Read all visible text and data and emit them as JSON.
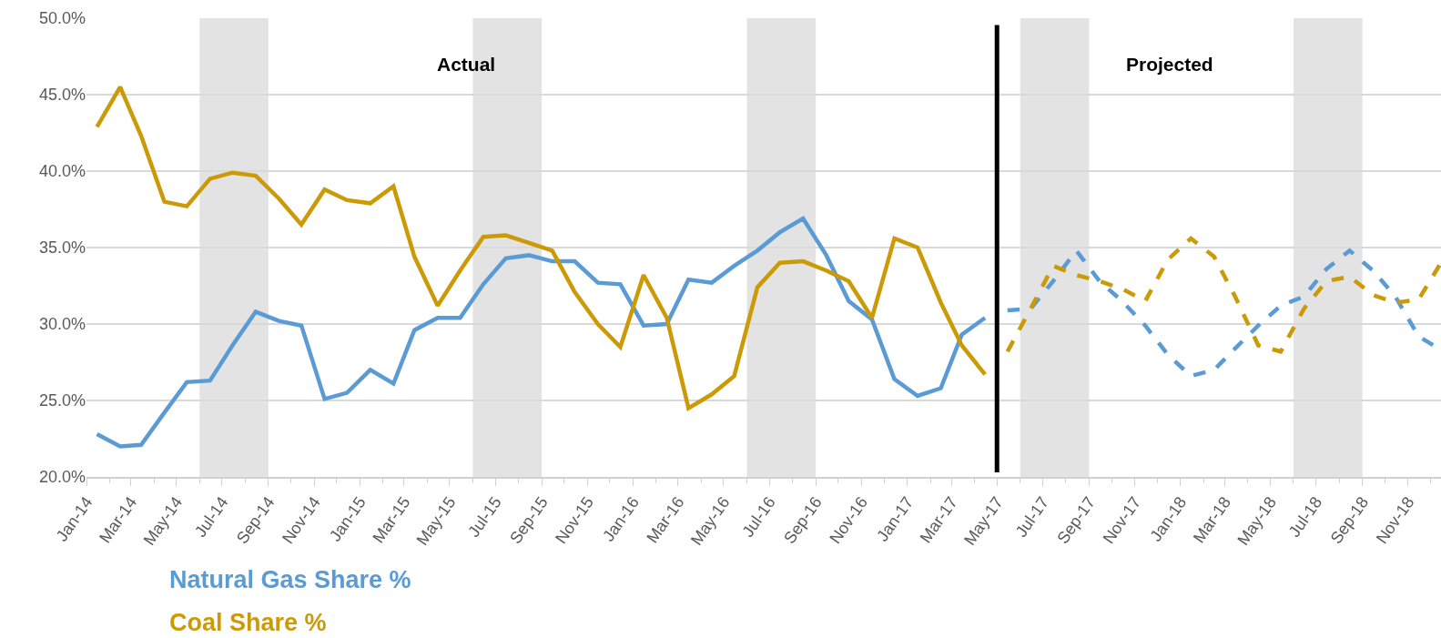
{
  "chart_data": {
    "type": "line",
    "annotations": [
      "Actual",
      "Projected"
    ],
    "series": [
      {
        "name": "Natural Gas Share %",
        "color": "#5b9bd5",
        "line_style": "solid",
        "x": [
          "2014-01-15",
          "2014-02-15",
          "2014-03-15",
          "2014-04-15",
          "2014-05-15",
          "2014-06-15",
          "2014-07-15",
          "2014-08-15",
          "2014-09-15",
          "2014-10-15",
          "2014-11-15",
          "2014-12-15",
          "2015-01-15",
          "2015-02-15",
          "2015-03-15",
          "2015-04-15",
          "2015-05-15",
          "2015-06-15",
          "2015-07-15",
          "2015-08-15",
          "2015-09-15",
          "2015-10-15",
          "2015-11-15",
          "2015-12-15",
          "2016-01-15",
          "2016-02-15",
          "2016-03-15",
          "2016-04-15",
          "2016-05-15",
          "2016-06-15",
          "2016-07-15",
          "2016-08-15",
          "2016-09-15",
          "2016-10-15",
          "2016-11-15",
          "2016-12-15",
          "2017-01-15",
          "2017-02-15",
          "2017-03-15",
          "2017-04-15"
        ],
        "values": [
          22.8,
          22.0,
          22.1,
          24.2,
          26.2,
          26.3,
          28.6,
          30.8,
          30.2,
          29.9,
          25.1,
          25.5,
          27.0,
          26.1,
          29.6,
          30.4,
          30.4,
          32.6,
          34.3,
          34.5,
          34.1,
          34.1,
          32.7,
          32.6,
          29.9,
          30.0,
          32.9,
          32.7,
          33.8,
          34.8,
          36.0,
          36.9,
          34.5,
          31.5,
          30.3,
          26.4,
          25.3,
          25.8,
          29.3,
          30.4
        ]
      },
      {
        "name": "Coal Share %",
        "color": "#cc9a06",
        "line_style": "solid",
        "x": [
          "2014-01-15",
          "2014-02-15",
          "2014-03-15",
          "2014-04-15",
          "2014-05-15",
          "2014-06-15",
          "2014-07-15",
          "2014-08-15",
          "2014-09-15",
          "2014-10-15",
          "2014-11-15",
          "2014-12-15",
          "2015-01-15",
          "2015-02-15",
          "2015-03-15",
          "2015-04-15",
          "2015-05-15",
          "2015-06-15",
          "2015-07-15",
          "2015-08-15",
          "2015-09-15",
          "2015-10-15",
          "2015-11-15",
          "2015-12-15",
          "2016-01-15",
          "2016-02-15",
          "2016-03-15",
          "2016-04-15",
          "2016-05-15",
          "2016-06-15",
          "2016-07-15",
          "2016-08-15",
          "2016-09-15",
          "2016-10-15",
          "2016-11-15",
          "2016-12-15",
          "2017-01-15",
          "2017-02-15",
          "2017-03-15",
          "2017-04-15"
        ],
        "values": [
          42.9,
          45.5,
          42.3,
          38.0,
          37.7,
          39.5,
          39.9,
          39.7,
          38.2,
          36.5,
          38.8,
          38.1,
          37.9,
          39.0,
          34.4,
          31.2,
          33.5,
          35.7,
          35.8,
          35.3,
          34.8,
          32.1,
          30.0,
          28.5,
          33.2,
          30.4,
          24.5,
          25.4,
          26.6,
          32.4,
          34.0,
          34.1,
          33.5,
          32.8,
          30.4,
          35.6,
          35.0,
          31.4,
          28.6,
          26.7
        ]
      },
      {
        "color": "#5b9bd5",
        "line_style": "dashed",
        "x": [
          "2017-05-15",
          "2017-06-15",
          "2017-07-15",
          "2017-08-15",
          "2017-09-15",
          "2017-10-15",
          "2017-11-15",
          "2017-12-15",
          "2018-01-15",
          "2018-02-15",
          "2018-03-15",
          "2018-04-15",
          "2018-05-15",
          "2018-06-15",
          "2018-07-15",
          "2018-08-15",
          "2018-09-15",
          "2018-10-15",
          "2018-11-15",
          "2018-12-15"
        ],
        "values": [
          30.9,
          31.0,
          32.8,
          34.8,
          32.8,
          31.5,
          29.9,
          28.0,
          26.6,
          27.0,
          28.4,
          29.9,
          31.2,
          31.8,
          33.6,
          34.8,
          33.5,
          31.8,
          29.2,
          28.3
        ]
      },
      {
        "color": "#cc9a06",
        "line_style": "dashed",
        "x": [
          "2017-05-15",
          "2017-06-15",
          "2017-07-15",
          "2017-08-15",
          "2017-09-15",
          "2017-10-15",
          "2017-11-15",
          "2017-12-15",
          "2018-01-15",
          "2018-02-15",
          "2018-03-15",
          "2018-04-15",
          "2018-05-15",
          "2018-06-15",
          "2018-07-15",
          "2018-08-15",
          "2018-09-15",
          "2018-10-15",
          "2018-11-15",
          "2018-12-15"
        ],
        "values": [
          28.2,
          31.0,
          33.8,
          33.2,
          32.8,
          32.3,
          31.5,
          34.2,
          35.6,
          34.4,
          31.8,
          28.6,
          28.2,
          31.0,
          32.8,
          33.1,
          31.9,
          31.4,
          31.6,
          34.0
        ]
      }
    ],
    "xlim": [
      "2014-01-01",
      "2018-12-15"
    ],
    "xticks": [
      {
        "value": "2014-01",
        "label": "Jan-14"
      },
      {
        "value": "2014-03",
        "label": "Mar-14"
      },
      {
        "value": "2014-05",
        "label": "May-14"
      },
      {
        "value": "2014-07",
        "label": "Jul-14"
      },
      {
        "value": "2014-09",
        "label": "Sep-14"
      },
      {
        "value": "2014-11",
        "label": "Nov-14"
      },
      {
        "value": "2015-01",
        "label": "Jan-15"
      },
      {
        "value": "2015-03",
        "label": "Mar-15"
      },
      {
        "value": "2015-05",
        "label": "May-15"
      },
      {
        "value": "2015-07",
        "label": "Jul-15"
      },
      {
        "value": "2015-09",
        "label": "Sep-15"
      },
      {
        "value": "2015-11",
        "label": "Nov-15"
      },
      {
        "value": "2016-01",
        "label": "Jan-16"
      },
      {
        "value": "2016-03",
        "label": "Mar-16"
      },
      {
        "value": "2016-05",
        "label": "May-16"
      },
      {
        "value": "2016-07",
        "label": "Jul-16"
      },
      {
        "value": "2016-09",
        "label": "Sep-16"
      },
      {
        "value": "2016-11",
        "label": "Nov-16"
      },
      {
        "value": "2017-01",
        "label": "Jan-17"
      },
      {
        "value": "2017-03",
        "label": "Mar-17"
      },
      {
        "value": "2017-05",
        "label": "May-17"
      },
      {
        "value": "2017-07",
        "label": "Jul-17"
      },
      {
        "value": "2017-09",
        "label": "Sep-17"
      },
      {
        "value": "2017-11",
        "label": "Nov-17"
      },
      {
        "value": "2018-01",
        "label": "Jan-18"
      },
      {
        "value": "2018-03",
        "label": "Mar-18"
      },
      {
        "value": "2018-05",
        "label": "May-18"
      },
      {
        "value": "2018-07",
        "label": "Jul-18"
      },
      {
        "value": "2018-09",
        "label": "Sep-18"
      },
      {
        "value": "2018-11",
        "label": "Nov-18"
      }
    ],
    "ylim": [
      20,
      50
    ],
    "yticks": [
      {
        "value": 20,
        "label": "20.0%"
      },
      {
        "value": 25,
        "label": "25.0%"
      },
      {
        "value": 30,
        "label": "30.0%"
      },
      {
        "value": 35,
        "label": "35.0%"
      },
      {
        "value": 40,
        "label": "40.0%"
      },
      {
        "value": 45,
        "label": "45.0%"
      },
      {
        "value": 50,
        "label": "50.0%"
      }
    ],
    "grid": "y",
    "legend": false,
    "marker": "none",
    "bands": [
      {
        "axis": "x",
        "from": "2014-06",
        "to": "2014-09",
        "color": "#e3e3e3"
      },
      {
        "axis": "x",
        "from": "2015-06",
        "to": "2015-09",
        "color": "#e3e3e3"
      },
      {
        "axis": "x",
        "from": "2016-06",
        "to": "2016-09",
        "color": "#e3e3e3"
      },
      {
        "axis": "x",
        "from": "2017-06",
        "to": "2017-09",
        "color": "#e3e3e3"
      },
      {
        "axis": "x",
        "from": "2018-06",
        "to": "2018-09",
        "color": "#e3e3e3"
      }
    ],
    "ref_lines": [
      {
        "axis": "x",
        "value": "2017-05",
        "color": "#000000",
        "line_style": "solid"
      }
    ]
  }
}
